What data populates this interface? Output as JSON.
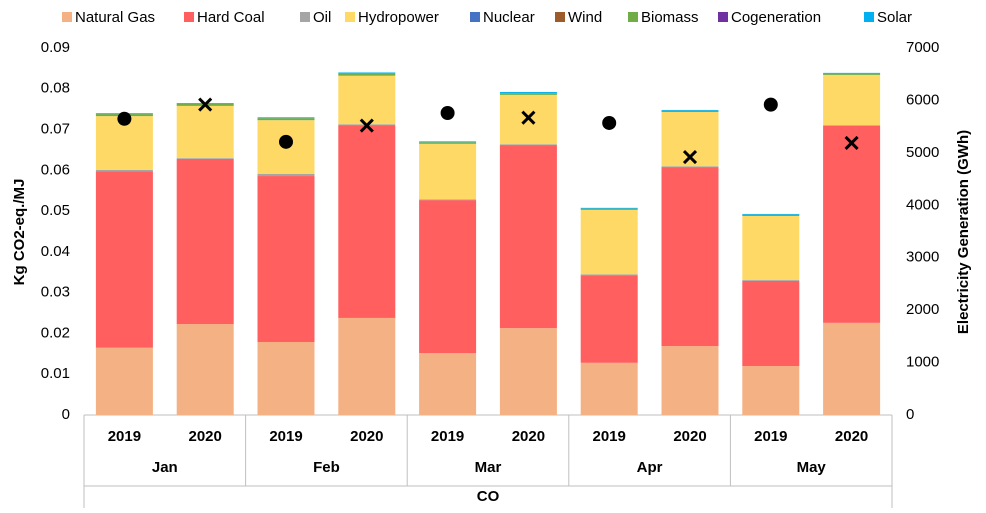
{
  "chart_data": {
    "type": "bar",
    "stacked": true,
    "y_label": "Kg CO2-eq./MJ",
    "y2_label": "Electricity Generation (GWh)",
    "x_label": "CO",
    "categories": [
      "2019",
      "2020",
      "2019",
      "2020",
      "2019",
      "2020",
      "2019",
      "2020",
      "2019",
      "2020"
    ],
    "groups": [
      "Jan",
      "Feb",
      "Mar",
      "Apr",
      "May"
    ],
    "ylim": [
      0,
      0.09
    ],
    "yticks": [
      0,
      0.01,
      0.02,
      0.03,
      0.04,
      0.05,
      0.06,
      0.07,
      0.08,
      0.09
    ],
    "y2lim": [
      0,
      7000
    ],
    "y2ticks": [
      0,
      1000,
      2000,
      3000,
      4000,
      5000,
      6000,
      7000
    ],
    "grid": false,
    "legend": "top",
    "series": [
      {
        "name": "Natural Gas",
        "color": "#f4b183",
        "values": [
          0.0165,
          0.0223,
          0.0179,
          0.0238,
          0.0152,
          0.0213,
          0.0128,
          0.0169,
          0.012,
          0.0226
        ]
      },
      {
        "name": "Hard Coal",
        "color": "#ff5f5f",
        "values": [
          0.0433,
          0.0405,
          0.0407,
          0.0473,
          0.0375,
          0.0449,
          0.0215,
          0.0439,
          0.0209,
          0.0483
        ]
      },
      {
        "name": "Oil",
        "color": "#a5a5a5",
        "values": [
          0.0003,
          0.0002,
          0.0005,
          0.0002,
          0.0002,
          0.0002,
          0.0002,
          0.0002,
          0.0002,
          0.0002
        ]
      },
      {
        "name": "Hydropower",
        "color": "#ffd966",
        "values": [
          0.0132,
          0.0128,
          0.0132,
          0.0119,
          0.0136,
          0.0121,
          0.0158,
          0.0133,
          0.0157,
          0.0123
        ]
      },
      {
        "name": "Nuclear",
        "color": "#4472c4",
        "values": [
          0,
          0,
          0,
          0,
          0,
          0,
          0,
          0,
          0,
          0
        ]
      },
      {
        "name": "Wind",
        "color": "#9c5b2a",
        "values": [
          0,
          0,
          0,
          0,
          0,
          0,
          0,
          0,
          0,
          0
        ]
      },
      {
        "name": "Biomass",
        "color": "#70ad47",
        "values": [
          0.0005,
          0.0005,
          0.0005,
          0.0005,
          0.0004,
          0.0004,
          0.0003,
          0.0003,
          0.0003,
          0.0003
        ]
      },
      {
        "name": "Cogeneration",
        "color": "#7030a0",
        "values": [
          0,
          0,
          0,
          0,
          0,
          0,
          0,
          0,
          0,
          0
        ]
      },
      {
        "name": "Solar",
        "color": "#00b0f0",
        "values": [
          0.0002,
          0.0002,
          0.0002,
          0.0003,
          0.0002,
          0.0003,
          0.0002,
          0.0002,
          0.0002,
          0.0002
        ]
      },
      {
        "axis": "y2",
        "color": "#000000",
        "values": [
          5650,
          5920,
          5210,
          5520,
          5760,
          5670,
          5570,
          4920,
          5920,
          5190
        ],
        "markers": [
          "circle",
          "cross",
          "circle",
          "cross",
          "circle",
          "cross",
          "circle",
          "cross",
          "circle",
          "cross"
        ]
      }
    ]
  }
}
